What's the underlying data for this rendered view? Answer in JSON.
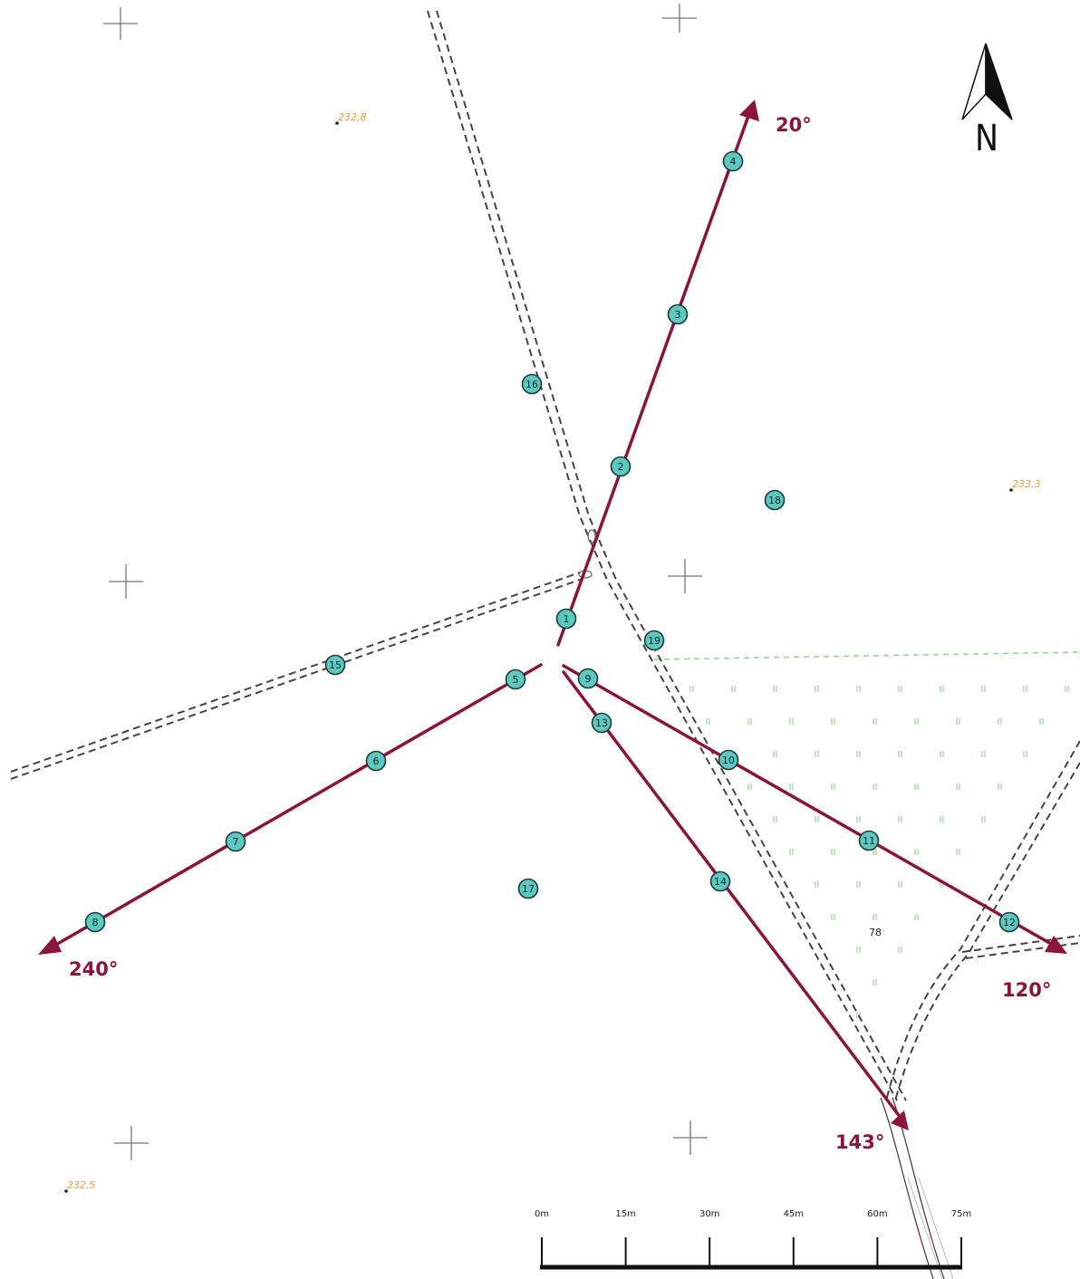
{
  "north_arrow": {
    "label": "N"
  },
  "bearings": [
    {
      "id": "20",
      "label": "20°"
    },
    {
      "id": "120",
      "label": "120°"
    },
    {
      "id": "143",
      "label": "143°"
    },
    {
      "id": "240",
      "label": "240°"
    }
  ],
  "elevations": [
    {
      "id": "a",
      "label": "232,8"
    },
    {
      "id": "b",
      "label": "233,3"
    },
    {
      "id": "c",
      "label": "232,5"
    }
  ],
  "parcel": {
    "label": "78"
  },
  "scale_bar": {
    "labels": [
      "0m",
      "15m",
      "30m",
      "45m",
      "60m",
      "75m"
    ]
  },
  "points": [
    "1",
    "2",
    "3",
    "4",
    "5",
    "6",
    "7",
    "8",
    "9",
    "10",
    "11",
    "12",
    "13",
    "14",
    "15",
    "16",
    "17",
    "18",
    "19"
  ],
  "colors": {
    "bearing_line": "#8b1538",
    "point_fill": "#5ec8c0",
    "point_stroke": "#1a3a3a",
    "road": "#444444",
    "meadow": "#8fd18f",
    "elevation": "#e6a23c"
  }
}
